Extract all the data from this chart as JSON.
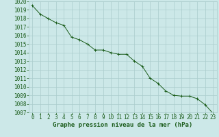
{
  "x": [
    0,
    1,
    2,
    3,
    4,
    5,
    6,
    7,
    8,
    9,
    10,
    11,
    12,
    13,
    14,
    15,
    16,
    17,
    18,
    19,
    20,
    21,
    22,
    23
  ],
  "y": [
    1019.5,
    1018.5,
    1018.0,
    1017.5,
    1017.2,
    1015.8,
    1015.5,
    1015.0,
    1014.3,
    1014.3,
    1014.0,
    1013.8,
    1013.8,
    1013.0,
    1012.4,
    1011.0,
    1010.4,
    1009.5,
    1009.0,
    1008.9,
    1008.9,
    1008.6,
    1007.9,
    1006.9
  ],
  "ylim": [
    1007,
    1020
  ],
  "xlim_min": -0.5,
  "xlim_max": 23.5,
  "yticks": [
    1007,
    1008,
    1009,
    1010,
    1011,
    1012,
    1013,
    1014,
    1015,
    1016,
    1017,
    1018,
    1019,
    1020
  ],
  "xticks": [
    0,
    1,
    2,
    3,
    4,
    5,
    6,
    7,
    8,
    9,
    10,
    11,
    12,
    13,
    14,
    15,
    16,
    17,
    18,
    19,
    20,
    21,
    22,
    23
  ],
  "line_color": "#1a5c1a",
  "marker": "+",
  "background_color": "#cce8e8",
  "grid_color": "#aacccc",
  "tick_color": "#1a5c1a",
  "xlabel": "Graphe pression niveau de la mer (hPa)",
  "xlabel_color": "#1a5c1a",
  "tick_label_color": "#1a5c1a",
  "xlabel_fontsize": 6.5,
  "tick_fontsize": 5.5
}
